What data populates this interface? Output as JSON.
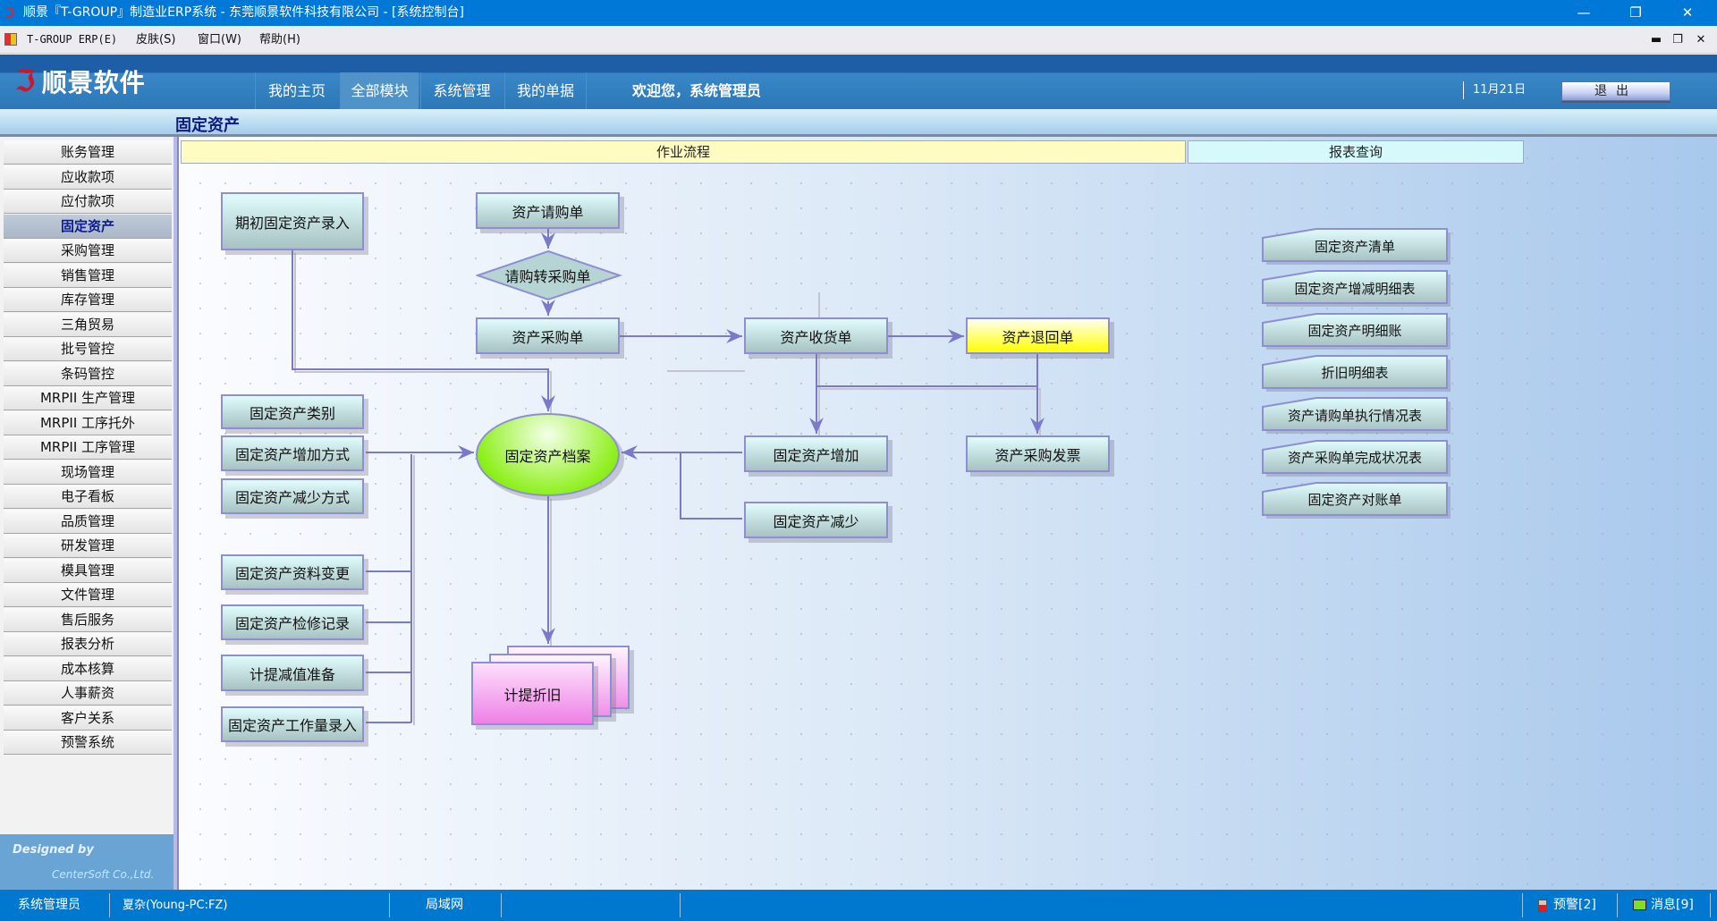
{
  "window": {
    "title": "顺景『T-GROUP』制造业ERP系统 - 东莞顺景软件科技有限公司 - [系统控制台]"
  },
  "menubar": {
    "items": [
      "T-GROUP ERP(E)",
      "皮肤(S)",
      "窗口(W)",
      "帮助(H)"
    ]
  },
  "header": {
    "logo": "顺景软件",
    "nav": [
      "我的主页",
      "全部模块",
      "系统管理",
      "我的单据"
    ],
    "active_nav": "全部模块",
    "welcome": "欢迎您，系统管理员",
    "date": "11月21日",
    "logout": "退出"
  },
  "page_title": "固定资产",
  "sidebar": {
    "items": [
      "账务管理",
      "应收款项",
      "应付款项",
      "固定资产",
      "采购管理",
      "销售管理",
      "库存管理",
      "三角贸易",
      "批号管控",
      "条码管控",
      "MRPII 生产管理",
      "MRPII 工序托外",
      "MRPII 工序管理",
      "现场管理",
      "电子看板",
      "品质管理",
      "研发管理",
      "模具管理",
      "文件管理",
      "售后服务",
      "报表分析",
      "成本核算",
      "人事薪资",
      "客户关系",
      "预警系统"
    ],
    "active": "固定资产",
    "designed_by": "Designed by",
    "company": "CenterSoft Co.,Ltd."
  },
  "sections": {
    "workflow": "作业流程",
    "reports": "报表查询"
  },
  "flow": {
    "initial_entry": "期初固定资产录入",
    "requisition": "资产请购单",
    "req_to_po": "请购转采购单",
    "purchase_order": "资产采购单",
    "receipt": "资产收货单",
    "return": "资产退回单",
    "category": "固定资产类别",
    "add_method": "固定资产增加方式",
    "reduce_method": "固定资产减少方式",
    "archive": "固定资产档案",
    "asset_add": "固定资产增加",
    "invoice": "资产采购发票",
    "asset_reduce": "固定资产减少",
    "data_change": "固定资产资料变更",
    "repair": "固定资产检修记录",
    "impairment": "计提减值准备",
    "workload": "固定资产工作量录入",
    "depreciation": "计提折旧"
  },
  "reports": [
    "固定资产清单",
    "固定资产增减明细表",
    "固定资产明细账",
    "折旧明细表",
    "资产请购单执行情况表",
    "资产采购单完成状况表",
    "固定资产对账单"
  ],
  "statusbar": {
    "user": "系统管理员",
    "host": "夏杂(Young-PC:FZ)",
    "network": "局域网",
    "alerts": "预警[2]",
    "messages": "消息[9]"
  },
  "colors": {
    "titlebar": "#0078d7",
    "highlight_node": "#ffff00",
    "archive_node": "#80f000",
    "depreciation_node": "#f080e8"
  }
}
